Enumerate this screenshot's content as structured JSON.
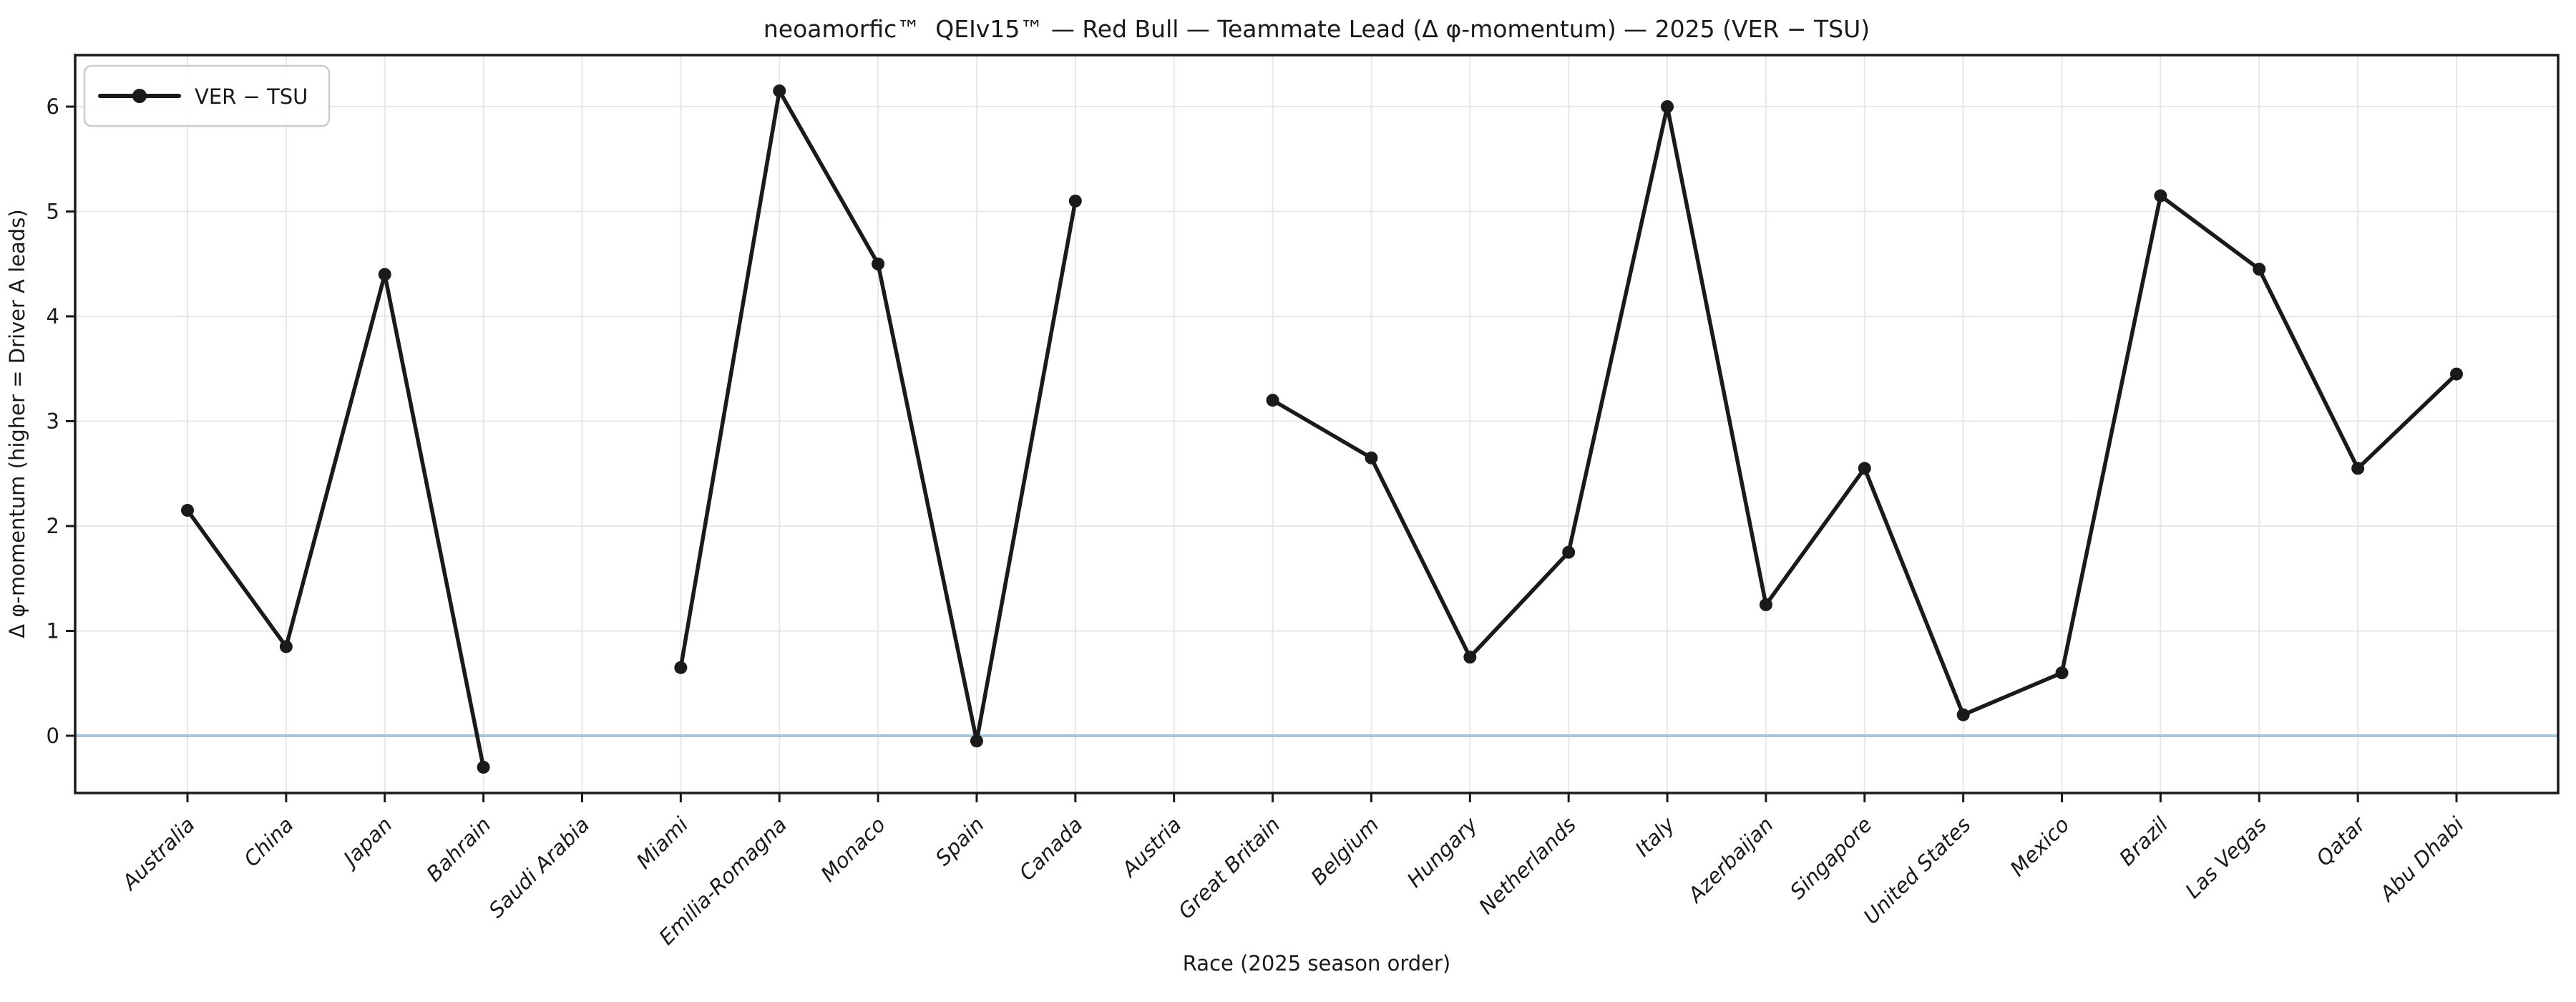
{
  "title": "neoamorfic™  QEIv15™ — Red Bull — Teammate Lead (Δ φ-momentum) — 2025 (VER − TSU)",
  "legend": {
    "label": "VER − TSU"
  },
  "axes": {
    "xlabel": "Race (2025 season order)",
    "ylabel": "Δ φ-momentum (higher = Driver A leads)",
    "yticks": [
      0,
      1,
      2,
      3,
      4,
      5,
      6
    ]
  },
  "colors": {
    "line": "#1a1a1a",
    "marker": "#1a1a1a",
    "zero_line": "#a9c6d8",
    "grid": "#e7e7e7",
    "spine": "#1a1a1a",
    "background": "#ffffff",
    "legend_border": "#cccccc"
  },
  "chart_data": {
    "type": "line",
    "title": "neoamorfic™  QEIv15™ — Red Bull — Teammate Lead (Δ φ-momentum) — 2025 (VER − TSU)",
    "xlabel": "Race (2025 season order)",
    "ylabel": "Δ φ-momentum (higher = Driver A leads)",
    "categories": [
      "Australia",
      "China",
      "Japan",
      "Bahrain",
      "Saudi Arabia",
      "Miami",
      "Emilia-Romagna",
      "Monaco",
      "Spain",
      "Canada",
      "Austria",
      "Great Britain",
      "Belgium",
      "Hungary",
      "Netherlands",
      "Italy",
      "Azerbaijan",
      "Singapore",
      "United States",
      "Mexico",
      "Brazil",
      "Las Vegas",
      "Qatar",
      "Abu Dhabi"
    ],
    "series": [
      {
        "name": "VER − TSU",
        "values": [
          2.15,
          0.85,
          4.4,
          -0.3,
          null,
          0.65,
          6.15,
          4.5,
          -0.05,
          5.1,
          null,
          3.2,
          2.65,
          0.75,
          1.75,
          6.0,
          1.25,
          2.55,
          0.2,
          0.6,
          5.15,
          4.45,
          2.55,
          3.45
        ]
      }
    ],
    "ylim": [
      -0.6,
      6.5
    ],
    "yticks": [
      0,
      1,
      2,
      3,
      4,
      5,
      6
    ],
    "grid": true,
    "legend_position": "upper left",
    "zero_line": 0,
    "notes": "Gaps (no data) at Saudi Arabia and Austria"
  }
}
